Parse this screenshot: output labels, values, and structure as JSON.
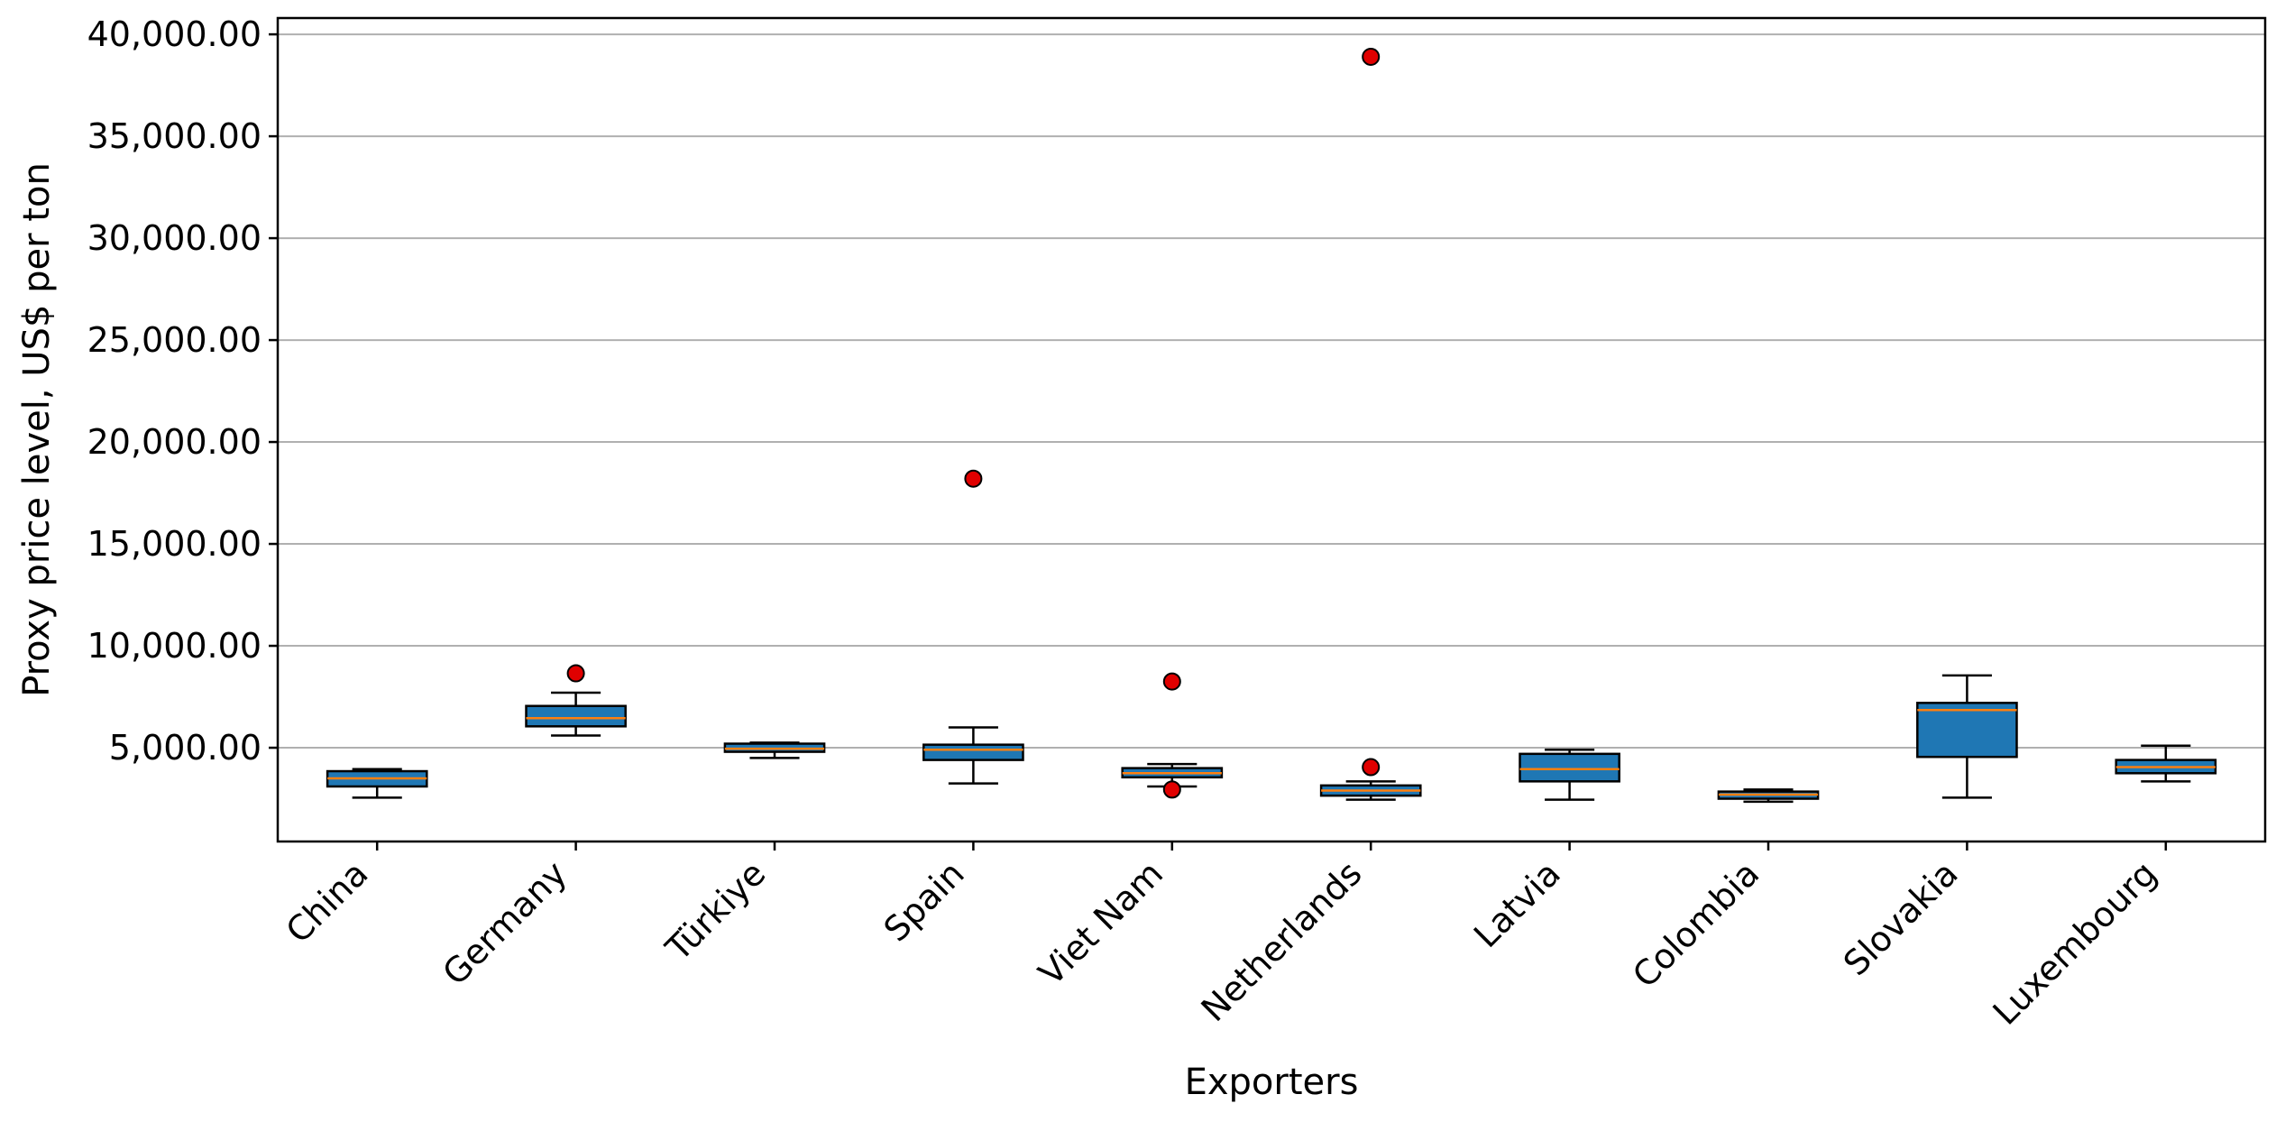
{
  "chart_data": {
    "type": "box",
    "xlabel": "Exporters",
    "ylabel": "Proxy price level, US$ per ton",
    "ylim": [
      400,
      40800
    ],
    "yticks": [
      5000,
      10000,
      15000,
      20000,
      25000,
      30000,
      35000,
      40000
    ],
    "ytick_labels": [
      "5,000.00",
      "10,000.00",
      "15,000.00",
      "20,000.00",
      "25,000.00",
      "30,000.00",
      "35,000.00",
      "40,000.00"
    ],
    "grid": "horizontal",
    "colors": {
      "box_fill": "#1f77b4",
      "median": "#ff7f0e",
      "outlier_fill": "#e00000",
      "grid": "#b0b0b0"
    },
    "categories": [
      "China",
      "Germany",
      "Türkiye",
      "Spain",
      "Viet Nam",
      "Netherlands",
      "Latvia",
      "Colombia",
      "Slovakia",
      "Luxembourg"
    ],
    "boxes": [
      {
        "category": "China",
        "whisker_low": 2550,
        "q1": 3100,
        "median": 3500,
        "q3": 3850,
        "whisker_high": 3950,
        "outliers": []
      },
      {
        "category": "Germany",
        "whisker_low": 5600,
        "q1": 6050,
        "median": 6450,
        "q3": 7050,
        "whisker_high": 7700,
        "outliers": [
          8650
        ]
      },
      {
        "category": "Türkiye",
        "whisker_low": 4500,
        "q1": 4800,
        "median": 4950,
        "q3": 5200,
        "whisker_high": 5250,
        "outliers": []
      },
      {
        "category": "Spain",
        "whisker_low": 3250,
        "q1": 4400,
        "median": 4900,
        "q3": 5150,
        "whisker_high": 6000,
        "outliers": [
          18200
        ]
      },
      {
        "category": "Viet Nam",
        "whisker_low": 3100,
        "q1": 3550,
        "median": 3750,
        "q3": 4000,
        "whisker_high": 4200,
        "outliers": [
          8250,
          2950
        ]
      },
      {
        "category": "Netherlands",
        "whisker_low": 2450,
        "q1": 2650,
        "median": 2900,
        "q3": 3150,
        "whisker_high": 3350,
        "outliers": [
          38900,
          4050
        ]
      },
      {
        "category": "Latvia",
        "whisker_low": 2450,
        "q1": 3350,
        "median": 3950,
        "q3": 4700,
        "whisker_high": 4900,
        "outliers": []
      },
      {
        "category": "Colombia",
        "whisker_low": 2350,
        "q1": 2500,
        "median": 2700,
        "q3": 2850,
        "whisker_high": 2950,
        "outliers": []
      },
      {
        "category": "Slovakia",
        "whisker_low": 2550,
        "q1": 4550,
        "median": 6850,
        "q3": 7200,
        "whisker_high": 8550,
        "outliers": []
      },
      {
        "category": "Luxembourg",
        "whisker_low": 3350,
        "q1": 3750,
        "median": 4050,
        "q3": 4400,
        "whisker_high": 5100,
        "outliers": []
      }
    ]
  }
}
